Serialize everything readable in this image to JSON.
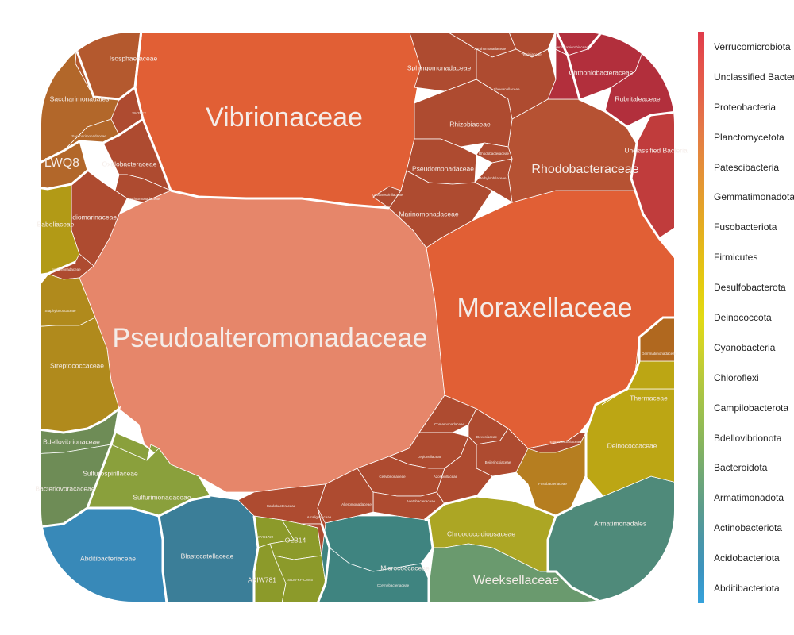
{
  "chart_data": {
    "type": "voronoi_treemap",
    "legend": {
      "position": "right",
      "items": [
        {
          "label": "Verrucomicrobiota",
          "color": "#e03b4b"
        },
        {
          "label": "Unclassified Bacteria",
          "color": "#e4524b"
        },
        {
          "label": "Proteobacteria",
          "color": "#e4634a"
        },
        {
          "label": "Planctomycetota",
          "color": "#e47848"
        },
        {
          "label": "Patescibacteria",
          "color": "#e48a3c"
        },
        {
          "label": "Gemmatimonadota",
          "color": "#e49a30"
        },
        {
          "label": "Fusobacteriota",
          "color": "#e4aa22"
        },
        {
          "label": "Firmicutes",
          "color": "#e4bc18"
        },
        {
          "label": "Desulfobacterota",
          "color": "#e4cc10"
        },
        {
          "label": "Deinococcota",
          "color": "#e2da14"
        },
        {
          "label": "Cyanobacteria",
          "color": "#cfd22a"
        },
        {
          "label": "Chloroflexi",
          "color": "#b4c83e"
        },
        {
          "label": "Campilobacterota",
          "color": "#9cc04e"
        },
        {
          "label": "Bdellovibrionota",
          "color": "#86b45e"
        },
        {
          "label": "Bacteroidota",
          "color": "#70a876"
        },
        {
          "label": "Armatimonadota",
          "color": "#5c9c8c"
        },
        {
          "label": "Actinobacteriota",
          "color": "#4a96a8"
        },
        {
          "label": "Acidobacteriota",
          "color": "#3c94c0"
        },
        {
          "label": "Abditibacteriota",
          "color": "#35a2dc"
        }
      ]
    },
    "cells": [
      {
        "label": "Vibrionaceae",
        "color": "#e15f35",
        "size": "large"
      },
      {
        "label": "Pseudoalteromonadaceae",
        "color": "#e6866a",
        "size": "large"
      },
      {
        "label": "Moraxellaceae",
        "color": "#e15f35",
        "size": "large"
      },
      {
        "label": "Rhodobacteraceae",
        "color": "#b65233",
        "size": "medium"
      },
      {
        "label": "Sphingomonadaceae",
        "color": "#ae4b30",
        "size": "small"
      },
      {
        "label": "Xanthomonadaceae",
        "color": "#ae4b30",
        "size": "tiny"
      },
      {
        "label": "Yersiniaceae",
        "color": "#ae4b30",
        "size": "tiny"
      },
      {
        "label": "Rhizobiaceae",
        "color": "#ae4b30",
        "size": "small"
      },
      {
        "label": "Shewanellaceae",
        "color": "#ae4b30",
        "size": "tiny"
      },
      {
        "label": "Rhodobacteraceae",
        "color": "#ae4b30",
        "size": "tiny"
      },
      {
        "label": "Pseudomonadaceae",
        "color": "#ae4b30",
        "size": "small"
      },
      {
        "label": "Methylophilaceae",
        "color": "#ae4b30",
        "size": "tiny"
      },
      {
        "label": "Marinomonadaceae",
        "color": "#ae4b30",
        "size": "small"
      },
      {
        "label": "Oceanospirillaceae",
        "color": "#ae4b30",
        "size": "tiny"
      },
      {
        "label": "Verrucomicrobiaceae",
        "color": "#b22f3c",
        "size": "tiny"
      },
      {
        "label": "Chthoniobacteraceae",
        "color": "#b22f3c",
        "size": "small"
      },
      {
        "label": "Rubritaleaceae",
        "color": "#b22f3c",
        "size": "small"
      },
      {
        "label": "Unclassified Bacteria",
        "color": "#c03c3c",
        "size": "small"
      },
      {
        "label": "Isosphaeraceae",
        "color": "#b4592e",
        "size": "small"
      },
      {
        "label": "Saccharimonadales",
        "color": "#b2672a",
        "size": "small"
      },
      {
        "label": "Saccharimonadaceae",
        "color": "#b2672a",
        "size": "tiny"
      },
      {
        "label": "SM2D12",
        "color": "#ae4b30",
        "size": "tiny"
      },
      {
        "label": "LWQ8",
        "color": "#b2672a",
        "size": "medium"
      },
      {
        "label": "Oxalobacteraceae",
        "color": "#ae4b30",
        "size": "small"
      },
      {
        "label": "Psychromonadaceae",
        "color": "#ae4b30",
        "size": "tiny"
      },
      {
        "label": "Idiomarinaceae",
        "color": "#ae4b30",
        "size": "small"
      },
      {
        "label": "Babeliaceae",
        "color": "#b29a16",
        "size": "small"
      },
      {
        "label": "Halomonadaceae",
        "color": "#ae4b30",
        "size": "tiny"
      },
      {
        "label": "Staphylococcaceae",
        "color": "#b08a1c",
        "size": "tiny"
      },
      {
        "label": "Streptococcaceae",
        "color": "#b08a1c",
        "size": "small"
      },
      {
        "label": "Bdellovibrionaceae",
        "color": "#6e8c56",
        "size": "small"
      },
      {
        "label": "Bacteriovoracaceae",
        "color": "#6e8c56",
        "size": "small"
      },
      {
        "label": "Sulfurospirillaceae",
        "color": "#8aa03c",
        "size": "small"
      },
      {
        "label": "Sulfurimonadaceae",
        "color": "#8aa03c",
        "size": "small"
      },
      {
        "label": "Abditibacteriaceae",
        "color": "#3889b8",
        "size": "small"
      },
      {
        "label": "Blastocatellaceae",
        "color": "#3b7e98",
        "size": "small"
      },
      {
        "label": "AKYG1722",
        "color": "#8c9a2a",
        "size": "tiny"
      },
      {
        "label": "OLB14",
        "color": "#8c9a2a",
        "size": "small"
      },
      {
        "label": "AKIW781",
        "color": "#8c9a2a",
        "size": "small"
      },
      {
        "label": "SB30-KF-CM45",
        "color": "#8c9a2a",
        "size": "tiny"
      },
      {
        "label": "Micrococcaceae",
        "color": "#3f8480",
        "size": "small"
      },
      {
        "label": "Corynebacteriaceae",
        "color": "#3f8480",
        "size": "tiny"
      },
      {
        "label": "Chroococcidiopsaceae",
        "color": "#aca624",
        "size": "small"
      },
      {
        "label": "Armatimonadales",
        "color": "#4f8a7a",
        "size": "small"
      },
      {
        "label": "Weeksellaceae",
        "color": "#6a9a6e",
        "size": "medium"
      },
      {
        "label": "Deinococcaceae",
        "color": "#bca614",
        "size": "small"
      },
      {
        "label": "Thermaceae",
        "color": "#bca614",
        "size": "small"
      },
      {
        "label": "Fusobacteriaceae",
        "color": "#b67e20",
        "size": "tiny"
      },
      {
        "label": "Gemmatimonadaceae",
        "color": "#b0681f",
        "size": "tiny"
      },
      {
        "label": "Comamonadaceae",
        "color": "#ae4b30",
        "size": "tiny"
      },
      {
        "label": "Devosiaceae",
        "color": "#ae4b30",
        "size": "tiny"
      },
      {
        "label": "Legionellaceae",
        "color": "#ae4b30",
        "size": "tiny"
      },
      {
        "label": "Beijerinckiaceae",
        "color": "#ae4b30",
        "size": "tiny"
      },
      {
        "label": "Azospirillaceae",
        "color": "#ae4b30",
        "size": "tiny"
      },
      {
        "label": "Cellvibrionaceae",
        "color": "#ae4b30",
        "size": "tiny"
      },
      {
        "label": "Acetobacteraceae",
        "color": "#ae4b30",
        "size": "tiny"
      },
      {
        "label": "Alteromonadaceae",
        "color": "#ae4b30",
        "size": "tiny"
      },
      {
        "label": "Caulobacteraceae",
        "color": "#ae4b30",
        "size": "tiny"
      },
      {
        "label": "Alcaligenaceae",
        "color": "#ae4b30",
        "size": "tiny"
      },
      {
        "label": "Enterobacteriaceae",
        "color": "#ae4b30",
        "size": "tiny"
      }
    ]
  }
}
